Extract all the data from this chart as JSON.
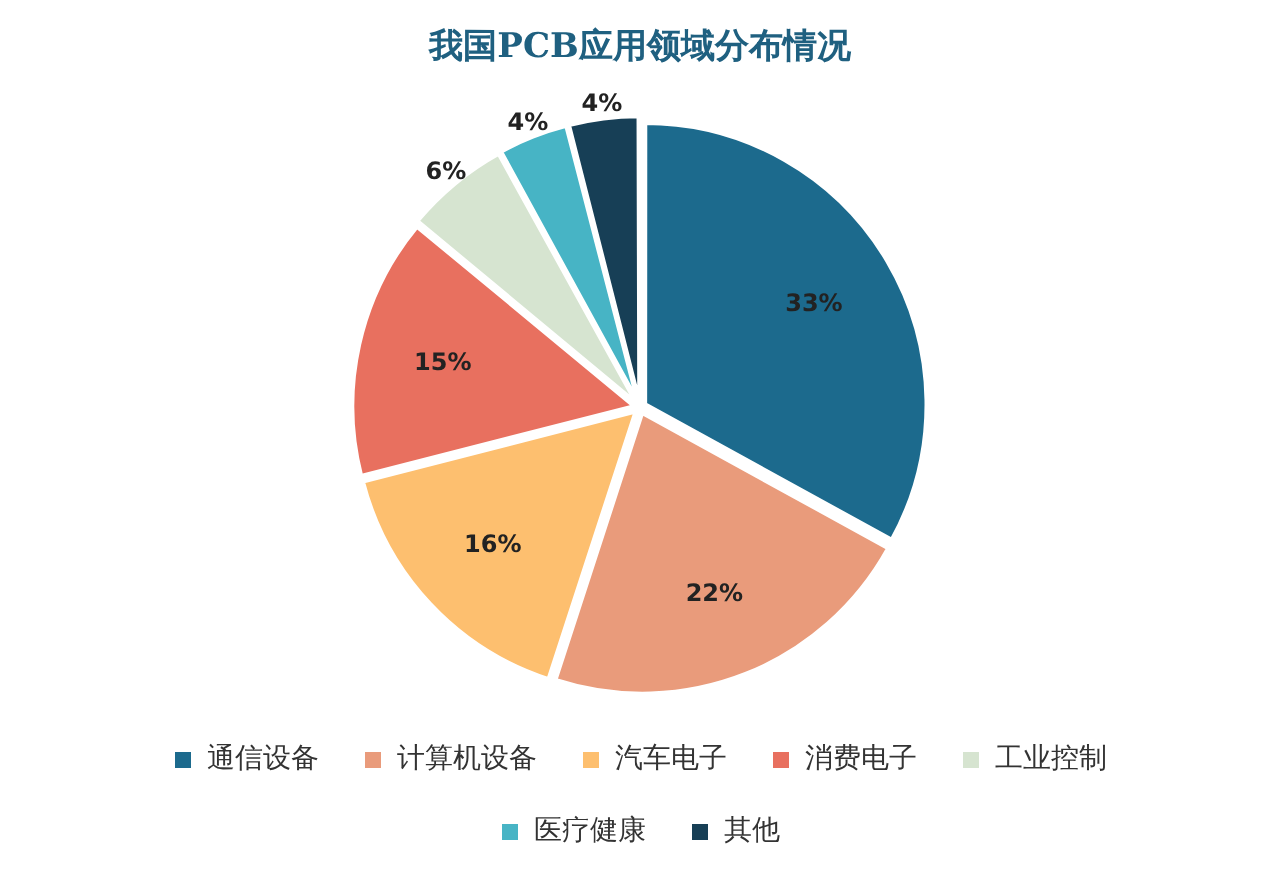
{
  "chart_data": {
    "type": "pie",
    "title": "我国PCB应用领域分布情况",
    "categories": [
      "通信设备",
      "计算机设备",
      "汽车电子",
      "消费电子",
      "工业控制",
      "医疗健康",
      "其他"
    ],
    "values": [
      33,
      22,
      16,
      15,
      6,
      4,
      4
    ],
    "colors": [
      "#1c6a8d",
      "#e99b7b",
      "#fdbf6f",
      "#e8705f",
      "#d6e4d0",
      "#47b4c5",
      "#173f56"
    ],
    "value_labels": [
      "33%",
      "22%",
      "16%",
      "15%",
      "6%",
      "4%",
      "4%"
    ],
    "legend": "bottom"
  }
}
